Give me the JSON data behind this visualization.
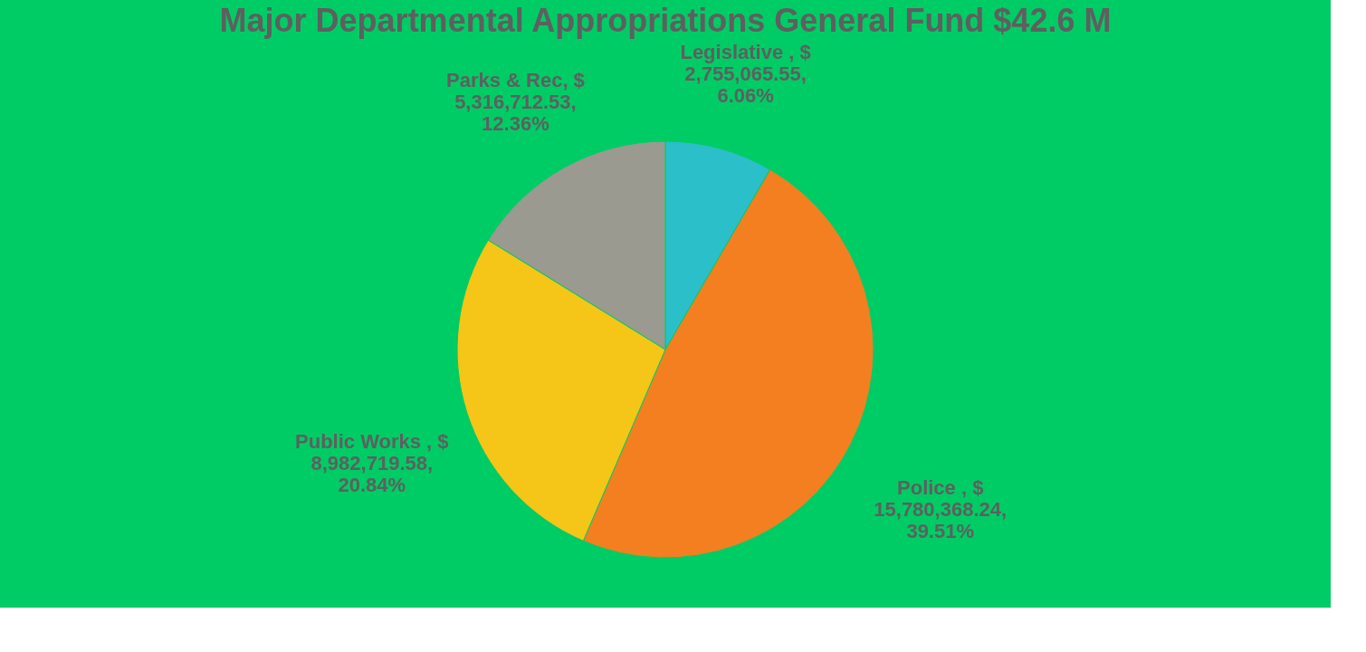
{
  "chart_data": {
    "type": "pie",
    "title": "Major Departmental Appropriations General Fund $42.6 M",
    "categories": [
      "Legislative ",
      "Police ",
      "Public Works ",
      "Parks & Rec"
    ],
    "values": [
      2755065.55,
      15780368.24,
      8982719.58,
      5316712.53
    ],
    "value_labels": [
      "$ 2,755,065.55, 6.06%",
      "$ 15,780,368.24, 39.51%",
      "$ 8,982,719.58, 20.84%",
      "$ 5,316,712.53, 12.36%"
    ],
    "colors": [
      "#2bbfc9",
      "#f47f20",
      "#f5c518",
      "#9a9a90"
    ],
    "legend": false
  }
}
